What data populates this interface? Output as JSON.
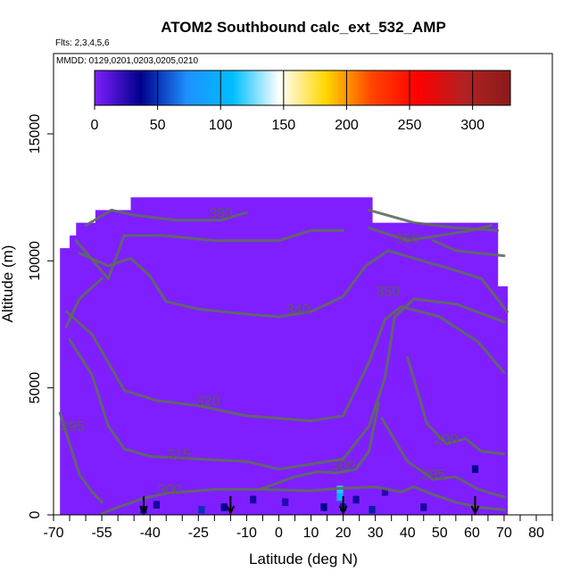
{
  "chart_data": {
    "type": "heatmap",
    "title": "ATOM2 Southbound calc_ext_532_AMP",
    "flights_label": "Flts: 2,3,4,5,6",
    "dates_label": "MMDD: 0129,0201,0203,0205,0210",
    "xlabel": "Latitude (deg N)",
    "ylabel": "Altitude (m)",
    "xlim": [
      -70,
      85
    ],
    "ylim": [
      0,
      17500
    ],
    "x_ticks": [
      -70,
      -55,
      -40,
      -25,
      -10,
      0,
      10,
      20,
      30,
      40,
      50,
      60,
      70,
      80
    ],
    "y_ticks": [
      0,
      5000,
      10000,
      15000
    ],
    "colorbar": {
      "ticks": [
        0,
        50,
        100,
        150,
        200,
        250,
        300
      ],
      "range": [
        0,
        330
      ],
      "colors": [
        "#7f1fff",
        "#00008b",
        "#1e90ff",
        "#00bfff",
        "#ffffff",
        "#ffd700",
        "#ff4500",
        "#ff0000",
        "#b22222",
        "#8b1a1a"
      ]
    },
    "grid": false,
    "coverage": [
      {
        "lat": [
          -68,
          -65
        ],
        "alt": [
          0,
          10500
        ]
      },
      {
        "lat": [
          -65,
          -63
        ],
        "alt": [
          0,
          11000
        ]
      },
      {
        "lat": [
          -63,
          -57
        ],
        "alt": [
          0,
          11500
        ]
      },
      {
        "lat": [
          -57,
          -52
        ],
        "alt": [
          0,
          12000
        ]
      },
      {
        "lat": [
          -52,
          -46
        ],
        "alt": [
          0,
          12000
        ]
      },
      {
        "lat": [
          -46,
          -40
        ],
        "alt": [
          0,
          12500
        ]
      },
      {
        "lat": [
          -40,
          29
        ],
        "alt": [
          0,
          12500
        ]
      },
      {
        "lat": [
          29,
          40
        ],
        "alt": [
          0,
          11500
        ]
      },
      {
        "lat": [
          40,
          55
        ],
        "alt": [
          0,
          11500
        ]
      },
      {
        "lat": [
          55,
          60
        ],
        "alt": [
          0,
          11500
        ]
      },
      {
        "lat": [
          60,
          68
        ],
        "alt": [
          0,
          11500
        ]
      },
      {
        "lat": [
          68,
          71
        ],
        "alt": [
          0,
          9000
        ]
      }
    ],
    "high_cells": [
      {
        "lat": -42,
        "alt": 200,
        "value": 40
      },
      {
        "lat": -38,
        "alt": 400,
        "value": 30
      },
      {
        "lat": -24,
        "alt": 200,
        "value": 50
      },
      {
        "lat": -17,
        "alt": 300,
        "value": 35
      },
      {
        "lat": -8,
        "alt": 600,
        "value": 30
      },
      {
        "lat": 2,
        "alt": 500,
        "value": 25
      },
      {
        "lat": 14,
        "alt": 300,
        "value": 35
      },
      {
        "lat": 19,
        "alt": 700,
        "value": 100
      },
      {
        "lat": 19,
        "alt": 1000,
        "value": 115
      },
      {
        "lat": 20,
        "alt": 300,
        "value": 45
      },
      {
        "lat": 24,
        "alt": 600,
        "value": 30
      },
      {
        "lat": 29,
        "alt": 200,
        "value": 45
      },
      {
        "lat": 33,
        "alt": 900,
        "value": 25
      },
      {
        "lat": 45,
        "alt": 300,
        "value": 30
      },
      {
        "lat": 61,
        "alt": 1800,
        "value": 35
      }
    ],
    "contours": [
      {
        "label": "300",
        "label_at": [
          -34,
          800
        ],
        "points": [
          [
            -55,
            50
          ],
          [
            -50,
            300
          ],
          [
            -42,
            650
          ],
          [
            -35,
            850
          ],
          [
            -20,
            1000
          ],
          [
            -5,
            1000
          ],
          [
            10,
            950
          ],
          [
            20,
            1050
          ],
          [
            30,
            1100
          ],
          [
            38,
            900
          ],
          [
            42,
            1100
          ],
          [
            48,
            800
          ],
          [
            55,
            500
          ],
          [
            62,
            300
          ],
          [
            70,
            200
          ]
        ]
      },
      {
        "label": "295",
        "label_at": [
          -64,
          3300
        ],
        "points": [
          [
            -68,
            4000
          ],
          [
            -65,
            2800
          ],
          [
            -62,
            1600
          ],
          [
            -58,
            900
          ],
          [
            -55,
            500
          ]
        ]
      },
      {
        "label": "295",
        "label_at": [
          48,
          1400
        ],
        "points": [
          [
            32,
            3800
          ],
          [
            40,
            2100
          ],
          [
            48,
            1400
          ],
          [
            55,
            1500
          ],
          [
            62,
            1000
          ],
          [
            70,
            700
          ]
        ]
      },
      {
        "label": "300",
        "label_at": [
          20,
          1750
        ],
        "points": [
          [
            -6,
            1000
          ],
          [
            5,
            1500
          ],
          [
            12,
            1700
          ],
          [
            18,
            1650
          ],
          [
            24,
            1800
          ],
          [
            28,
            2500
          ],
          [
            31,
            4400
          ]
        ]
      },
      {
        "label": "290",
        "label_at": [
          52,
          2800
        ],
        "points": [
          [
            40,
            6200
          ],
          [
            46,
            3600
          ],
          [
            52,
            2800
          ],
          [
            58,
            3000
          ],
          [
            63,
            2500
          ],
          [
            70,
            2400
          ]
        ]
      },
      {
        "label": "315",
        "label_at": [
          -31,
          2200
        ],
        "points": [
          [
            -65,
            6900
          ],
          [
            -58,
            5500
          ],
          [
            -53,
            3500
          ],
          [
            -48,
            2600
          ],
          [
            -40,
            2300
          ],
          [
            -25,
            2200
          ],
          [
            -10,
            2100
          ],
          [
            0,
            1800
          ],
          [
            10,
            2000
          ],
          [
            20,
            2200
          ],
          [
            28,
            3500
          ],
          [
            33,
            5400
          ],
          [
            36,
            7800
          ],
          [
            42,
            8500
          ],
          [
            55,
            8300
          ],
          [
            70,
            7600
          ]
        ]
      },
      {
        "label": "320",
        "label_at": [
          -22,
          4300
        ],
        "points": [
          [
            -66,
            8000
          ],
          [
            -58,
            7100
          ],
          [
            -53,
            6000
          ],
          [
            -48,
            4900
          ],
          [
            -38,
            4500
          ],
          [
            -25,
            4300
          ],
          [
            -10,
            3900
          ],
          [
            0,
            3800
          ],
          [
            10,
            3700
          ],
          [
            20,
            3900
          ],
          [
            28,
            6000
          ],
          [
            33,
            7700
          ],
          [
            38,
            8200
          ],
          [
            50,
            7800
          ],
          [
            62,
            6800
          ],
          [
            70,
            5600
          ]
        ]
      },
      {
        "label": "340",
        "label_at": [
          6,
          7900
        ],
        "points": [
          [
            -62,
            10300
          ],
          [
            -53,
            9800
          ],
          [
            -46,
            10100
          ],
          [
            -40,
            9400
          ],
          [
            -35,
            8400
          ],
          [
            -25,
            8100
          ],
          [
            -10,
            7900
          ],
          [
            0,
            7800
          ],
          [
            10,
            8000
          ],
          [
            20,
            8600
          ],
          [
            27,
            9800
          ],
          [
            34,
            10400
          ],
          [
            42,
            10100
          ],
          [
            53,
            9700
          ],
          [
            63,
            9300
          ],
          [
            71,
            8000
          ]
        ]
      },
      {
        "label": "350",
        "label_at": [
          34,
          8600
        ],
        "points": [
          [
            -63,
            10800
          ],
          [
            -53,
            9300
          ],
          [
            -48,
            11000
          ],
          [
            -36,
            11000
          ],
          [
            -20,
            10800
          ],
          [
            0,
            10800
          ],
          [
            10,
            11200
          ],
          [
            20,
            11200
          ]
        ]
      },
      {
        "label": "380",
        "label_at": [
          -18,
          11700
        ],
        "points": [
          [
            -60,
            11400
          ],
          [
            -52,
            12000
          ],
          [
            -45,
            11800
          ],
          [
            -32,
            11600
          ],
          [
            -18,
            11600
          ],
          [
            -10,
            11900
          ]
        ]
      },
      {
        "label": "350",
        "label_at": [
          40,
          10700
        ],
        "points": [
          [
            28,
            11300
          ],
          [
            40,
            10800
          ],
          [
            50,
            11000
          ],
          [
            60,
            11200
          ],
          [
            66,
            11400
          ]
        ]
      },
      {
        "label": "",
        "label_at": [
          0,
          0
        ],
        "points": [
          [
            48,
            10800
          ],
          [
            55,
            10400
          ],
          [
            62,
            10300
          ],
          [
            70,
            10200
          ]
        ]
      },
      {
        "label": "",
        "label_at": [
          0,
          0
        ],
        "points": [
          [
            -66,
            7400
          ],
          [
            -62,
            8500
          ],
          [
            -55,
            9300
          ]
        ]
      },
      {
        "label": "",
        "label_at": [
          0,
          0
        ],
        "points": [
          [
            28,
            12000
          ],
          [
            42,
            11500
          ],
          [
            55,
            11300
          ],
          [
            68,
            11200
          ]
        ]
      }
    ],
    "flight_arrows_lat": [
      -42,
      -15,
      20,
      61
    ]
  }
}
